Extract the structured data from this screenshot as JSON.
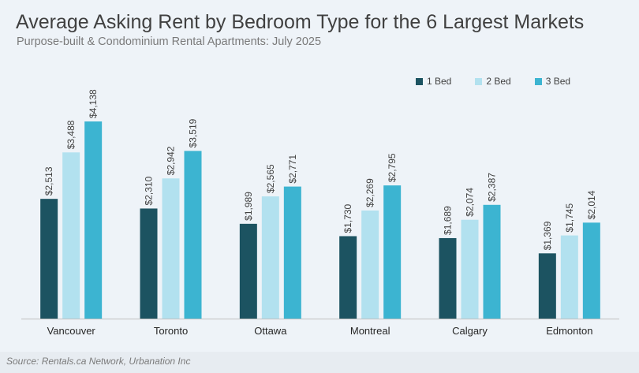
{
  "title": "Average Asking Rent by Bedroom Type for the 6 Largest Markets",
  "subtitle": "Purpose-built & Condominium Rental Apartments: July 2025",
  "source": "Source: Rentals.ca Network, Urbanation Inc",
  "colors": {
    "bed1": "#1c5361",
    "bed2": "#b2e1ef",
    "bed3": "#3cb4d1",
    "background": "#eef3f8"
  },
  "chart_data": {
    "type": "bar",
    "categories": [
      "Vancouver",
      "Toronto",
      "Ottawa",
      "Montreal",
      "Calgary",
      "Edmonton"
    ],
    "series": [
      {
        "name": "1 Bed",
        "values": [
          2513,
          2310,
          1989,
          1730,
          1689,
          1369
        ],
        "labels": [
          "$2,513",
          "$2,310",
          "$1,989",
          "$1,730",
          "$1,689",
          "$1,369"
        ]
      },
      {
        "name": "2 Bed",
        "values": [
          3488,
          2942,
          2565,
          2269,
          2074,
          1745
        ],
        "labels": [
          "$3,488",
          "$2,942",
          "$2,565",
          "$2,269",
          "$2,074",
          "$1,745"
        ]
      },
      {
        "name": "3 Bed",
        "values": [
          4138,
          3519,
          2771,
          2795,
          2387,
          2014
        ],
        "labels": [
          "$4,138",
          "$3,519",
          "$2,771",
          "$2,795",
          "$2,387",
          "$2,014"
        ]
      }
    ],
    "ylim": [
      0,
      4138
    ],
    "grid": false,
    "legend": "top-right"
  }
}
